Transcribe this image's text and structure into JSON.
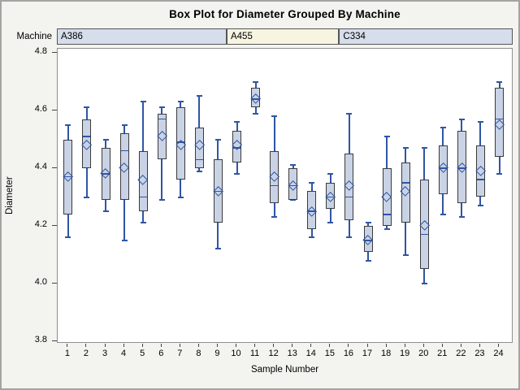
{
  "figure": {
    "title": "Box Plot for Diameter Grouped By Machine",
    "background": "#f3f3ef",
    "border_color": "#a3a3a3"
  },
  "machine_band": {
    "label": "Machine",
    "border_color": "#565656",
    "blocks": [
      {
        "label": "A386",
        "from_sample": 1,
        "to_sample": 9,
        "fill": "#d6ddeb"
      },
      {
        "label": "A455",
        "from_sample": 10,
        "to_sample": 15,
        "fill": "#f7f4e2"
      },
      {
        "label": "C334",
        "from_sample": 16,
        "to_sample": 24,
        "fill": "#d6ddeb"
      }
    ]
  },
  "chart_data": {
    "type": "box",
    "title": "Box Plot for Diameter Grouped By Machine",
    "xlabel": "Sample Number",
    "ylabel": "Diameter",
    "ylim": [
      3.8,
      4.8
    ],
    "yticks": [
      3.8,
      4.0,
      4.2,
      4.4,
      4.6,
      4.8
    ],
    "grid": false,
    "legend": false,
    "mean_marker": "diamond",
    "categories": [
      1,
      2,
      3,
      4,
      5,
      6,
      7,
      8,
      9,
      10,
      11,
      12,
      13,
      14,
      15,
      16,
      17,
      18,
      19,
      20,
      21,
      22,
      23,
      24
    ],
    "boxes": [
      {
        "sample": 1,
        "machine": "A386",
        "low": 4.16,
        "q1": 4.24,
        "median": 4.37,
        "q3": 4.5,
        "high": 4.55,
        "mean": 4.37
      },
      {
        "sample": 2,
        "machine": "A386",
        "low": 4.3,
        "q1": 4.4,
        "median": 4.51,
        "q3": 4.57,
        "high": 4.61,
        "mean": 4.48
      },
      {
        "sample": 3,
        "machine": "A386",
        "low": 4.25,
        "q1": 4.29,
        "median": 4.38,
        "q3": 4.47,
        "high": 4.5,
        "mean": 4.38
      },
      {
        "sample": 4,
        "machine": "A386",
        "low": 4.15,
        "q1": 4.29,
        "median": 4.46,
        "q3": 4.52,
        "high": 4.55,
        "mean": 4.4
      },
      {
        "sample": 5,
        "machine": "A386",
        "low": 4.21,
        "q1": 4.25,
        "median": 4.3,
        "q3": 4.46,
        "high": 4.63,
        "mean": 4.36
      },
      {
        "sample": 6,
        "machine": "A386",
        "low": 4.29,
        "q1": 4.43,
        "median": 4.57,
        "q3": 4.59,
        "high": 4.61,
        "mean": 4.51
      },
      {
        "sample": 7,
        "machine": "A386",
        "low": 4.3,
        "q1": 4.36,
        "median": 4.49,
        "q3": 4.61,
        "high": 4.63,
        "mean": 4.48
      },
      {
        "sample": 8,
        "machine": "A386",
        "low": 4.39,
        "q1": 4.4,
        "median": 4.43,
        "q3": 4.54,
        "high": 4.65,
        "mean": 4.48
      },
      {
        "sample": 9,
        "machine": "A386",
        "low": 4.12,
        "q1": 4.21,
        "median": 4.32,
        "q3": 4.43,
        "high": 4.5,
        "mean": 4.32
      },
      {
        "sample": 10,
        "machine": "A455",
        "low": 4.38,
        "q1": 4.42,
        "median": 4.47,
        "q3": 4.53,
        "high": 4.56,
        "mean": 4.48
      },
      {
        "sample": 11,
        "machine": "A455",
        "low": 4.59,
        "q1": 4.61,
        "median": 4.64,
        "q3": 4.68,
        "high": 4.7,
        "mean": 4.64
      },
      {
        "sample": 12,
        "machine": "A455",
        "low": 4.23,
        "q1": 4.28,
        "median": 4.34,
        "q3": 4.46,
        "high": 4.58,
        "mean": 4.37
      },
      {
        "sample": 13,
        "machine": "A455",
        "low": 4.29,
        "q1": 4.29,
        "median": 4.34,
        "q3": 4.4,
        "high": 4.41,
        "mean": 4.34
      },
      {
        "sample": 14,
        "machine": "A455",
        "low": 4.16,
        "q1": 4.19,
        "median": 4.25,
        "q3": 4.32,
        "high": 4.35,
        "mean": 4.25
      },
      {
        "sample": 15,
        "machine": "A455",
        "low": 4.21,
        "q1": 4.26,
        "median": 4.3,
        "q3": 4.35,
        "high": 4.38,
        "mean": 4.3
      },
      {
        "sample": 16,
        "machine": "C334",
        "low": 4.16,
        "q1": 4.22,
        "median": 4.3,
        "q3": 4.45,
        "high": 4.59,
        "mean": 4.34
      },
      {
        "sample": 17,
        "machine": "C334",
        "low": 4.08,
        "q1": 4.11,
        "median": 4.15,
        "q3": 4.2,
        "high": 4.21,
        "mean": 4.15
      },
      {
        "sample": 18,
        "machine": "C334",
        "low": 4.19,
        "q1": 4.2,
        "median": 4.24,
        "q3": 4.4,
        "high": 4.51,
        "mean": 4.3
      },
      {
        "sample": 19,
        "machine": "C334",
        "low": 4.1,
        "q1": 4.21,
        "median": 4.35,
        "q3": 4.42,
        "high": 4.47,
        "mean": 4.32
      },
      {
        "sample": 20,
        "machine": "C334",
        "low": 4.0,
        "q1": 4.05,
        "median": 4.17,
        "q3": 4.36,
        "high": 4.47,
        "mean": 4.2
      },
      {
        "sample": 21,
        "machine": "C334",
        "low": 4.24,
        "q1": 4.31,
        "median": 4.4,
        "q3": 4.48,
        "high": 4.54,
        "mean": 4.4
      },
      {
        "sample": 22,
        "machine": "C334",
        "low": 4.23,
        "q1": 4.28,
        "median": 4.4,
        "q3": 4.53,
        "high": 4.57,
        "mean": 4.4
      },
      {
        "sample": 23,
        "machine": "C334",
        "low": 4.27,
        "q1": 4.3,
        "median": 4.36,
        "q3": 4.48,
        "high": 4.56,
        "mean": 4.39
      },
      {
        "sample": 24,
        "machine": "C334",
        "low": 4.38,
        "q1": 4.44,
        "median": 4.57,
        "q3": 4.68,
        "high": 4.7,
        "mean": 4.55
      }
    ],
    "colors": {
      "box_fill": "#c9d3e5",
      "box_border": "#3b3b3b",
      "whisker": "#2f55a4",
      "median": "#2f55a4",
      "mean_marker": "#2f55a4",
      "plot_background": "#ffffff",
      "plot_border": "#8f8f8f"
    }
  }
}
